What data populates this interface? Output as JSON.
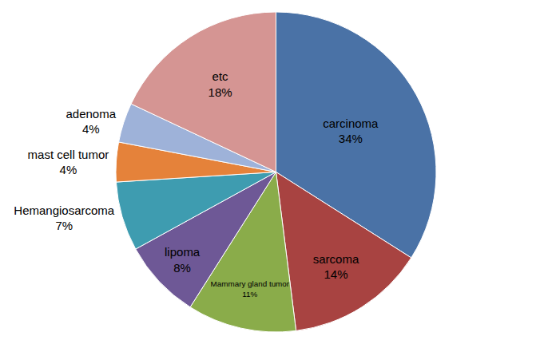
{
  "chart_data": {
    "type": "pie",
    "categories": [
      "carcinoma",
      "sarcoma",
      "Mammary gland tumor",
      "lipoma",
      "Hemangiosarcoma",
      "mast cell tumor",
      "adenoma",
      "etc"
    ],
    "values": [
      34,
      14,
      11,
      8,
      7,
      4,
      4,
      18
    ],
    "value_labels": [
      "34%",
      "14%",
      "11%",
      "8%",
      "7%",
      "4%",
      "4%",
      "18%"
    ],
    "colors": [
      "#4a72a6",
      "#a84341",
      "#8aac4a",
      "#6e5896",
      "#3e9cb0",
      "#e5823a",
      "#9eb2d9",
      "#d59593"
    ],
    "data_labels": true
  }
}
